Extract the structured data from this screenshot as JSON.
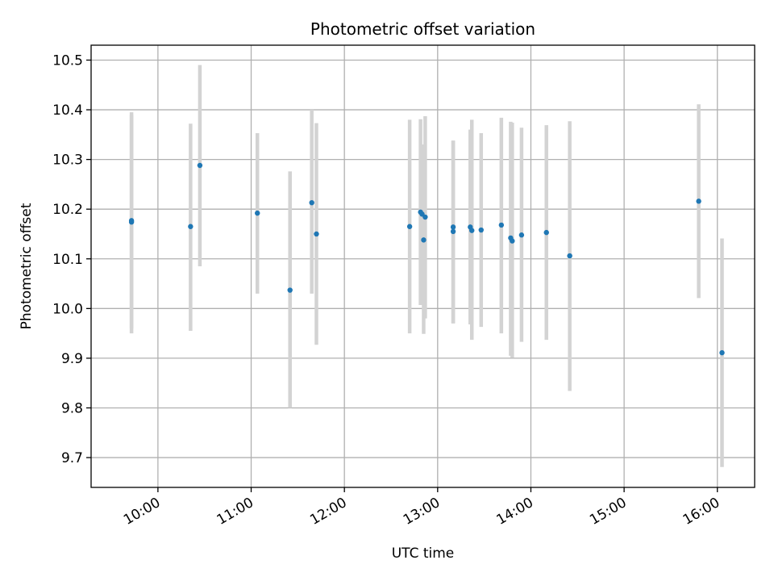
{
  "chart_data": {
    "type": "scatter",
    "title": "Photometric offset variation",
    "xlabel": "UTC time",
    "ylabel": "Photometric offset",
    "xlim": [
      "09:17",
      "16:24"
    ],
    "ylim": [
      9.64,
      10.53
    ],
    "x_ticks": [
      "10:00",
      "11:00",
      "12:00",
      "13:00",
      "14:00",
      "15:00",
      "16:00"
    ],
    "y_ticks": [
      "9.7",
      "9.8",
      "9.9",
      "10.0",
      "10.1",
      "10.2",
      "10.3",
      "10.4",
      "10.5"
    ],
    "grid": true,
    "colors": {
      "points": "#1f77b4",
      "error_bars": "#d3d3d3",
      "grid": "#b0b0b0"
    },
    "series": [
      {
        "points": [
          {
            "x": "09:43",
            "y": 10.177,
            "ylow": 9.96,
            "yhigh": 10.39
          },
          {
            "x": "09:43",
            "y": 10.174,
            "ylow": 9.95,
            "yhigh": 10.395
          },
          {
            "x": "10:21",
            "y": 10.165,
            "ylow": 9.955,
            "yhigh": 10.372
          },
          {
            "x": "10:27",
            "y": 10.288,
            "ylow": 10.085,
            "yhigh": 10.49
          },
          {
            "x": "11:04",
            "y": 10.192,
            "ylow": 10.03,
            "yhigh": 10.353
          },
          {
            "x": "11:25",
            "y": 10.037,
            "ylow": 9.8,
            "yhigh": 10.276
          },
          {
            "x": "11:39",
            "y": 10.213,
            "ylow": 10.03,
            "yhigh": 10.4
          },
          {
            "x": "11:42",
            "y": 10.15,
            "ylow": 9.927,
            "yhigh": 10.373
          },
          {
            "x": "12:42",
            "y": 10.165,
            "ylow": 9.95,
            "yhigh": 10.38
          },
          {
            "x": "12:49",
            "y": 10.194,
            "ylow": 10.007,
            "yhigh": 10.381
          },
          {
            "x": "12:50",
            "y": 10.19,
            "ylow": 10.05,
            "yhigh": 10.33
          },
          {
            "x": "12:51",
            "y": 10.138,
            "ylow": 9.949,
            "yhigh": 10.33
          },
          {
            "x": "12:52",
            "y": 10.184,
            "ylow": 9.98,
            "yhigh": 10.387
          },
          {
            "x": "13:10",
            "y": 10.164,
            "ylow": 9.97,
            "yhigh": 10.338
          },
          {
            "x": "13:10",
            "y": 10.155,
            "ylow": 9.97,
            "yhigh": 10.338
          },
          {
            "x": "13:21",
            "y": 10.164,
            "ylow": 9.968,
            "yhigh": 10.36
          },
          {
            "x": "13:22",
            "y": 10.157,
            "ylow": 9.937,
            "yhigh": 10.38
          },
          {
            "x": "13:28",
            "y": 10.158,
            "ylow": 9.963,
            "yhigh": 10.353
          },
          {
            "x": "13:41",
            "y": 10.168,
            "ylow": 9.95,
            "yhigh": 10.384
          },
          {
            "x": "13:47",
            "y": 10.142,
            "ylow": 9.905,
            "yhigh": 10.376
          },
          {
            "x": "13:48",
            "y": 10.136,
            "ylow": 9.901,
            "yhigh": 10.374
          },
          {
            "x": "13:54",
            "y": 10.148,
            "ylow": 9.933,
            "yhigh": 10.364
          },
          {
            "x": "14:10",
            "y": 10.153,
            "ylow": 9.937,
            "yhigh": 10.369
          },
          {
            "x": "14:25",
            "y": 10.106,
            "ylow": 9.834,
            "yhigh": 10.377
          },
          {
            "x": "15:48",
            "y": 10.216,
            "ylow": 10.021,
            "yhigh": 10.411
          },
          {
            "x": "16:03",
            "y": 9.911,
            "ylow": 9.681,
            "yhigh": 10.141
          }
        ]
      }
    ]
  }
}
